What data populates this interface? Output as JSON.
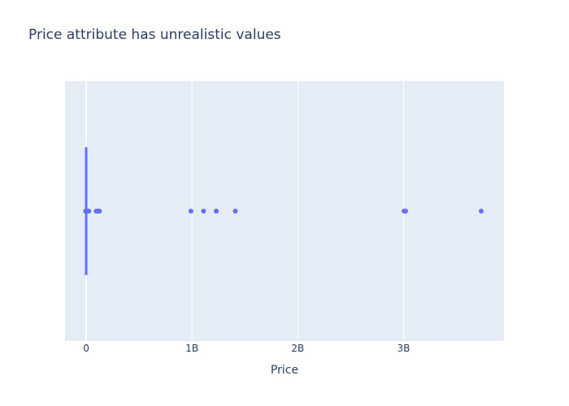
{
  "chart_data": {
    "type": "box",
    "title": "Price attribute has unrealistic values",
    "xlabel": "Price",
    "ylabel": "",
    "xlim": [
      -200000000,
      3950000000
    ],
    "x_ticks": [
      {
        "value": 0,
        "label": "0"
      },
      {
        "value": 1000000000,
        "label": "1B"
      },
      {
        "value": 2000000000,
        "label": "2B"
      },
      {
        "value": 3000000000,
        "label": "3B"
      }
    ],
    "grid": true,
    "legend": "none",
    "colors": {
      "series": "#636efa",
      "plot_background": "#e5ecf6",
      "grid": "#ffffff",
      "text": "#2a3f5f"
    },
    "box": {
      "min": 0,
      "q1": 0,
      "median": 0,
      "q3": 0,
      "max": 0
    },
    "outliers": [
      -5000000,
      5000000,
      15000000,
      25000000,
      95000000,
      105000000,
      115000000,
      125000000,
      990000000,
      1110000000,
      1230000000,
      1410000000,
      3005000000,
      3020000000,
      3735000000
    ]
  }
}
